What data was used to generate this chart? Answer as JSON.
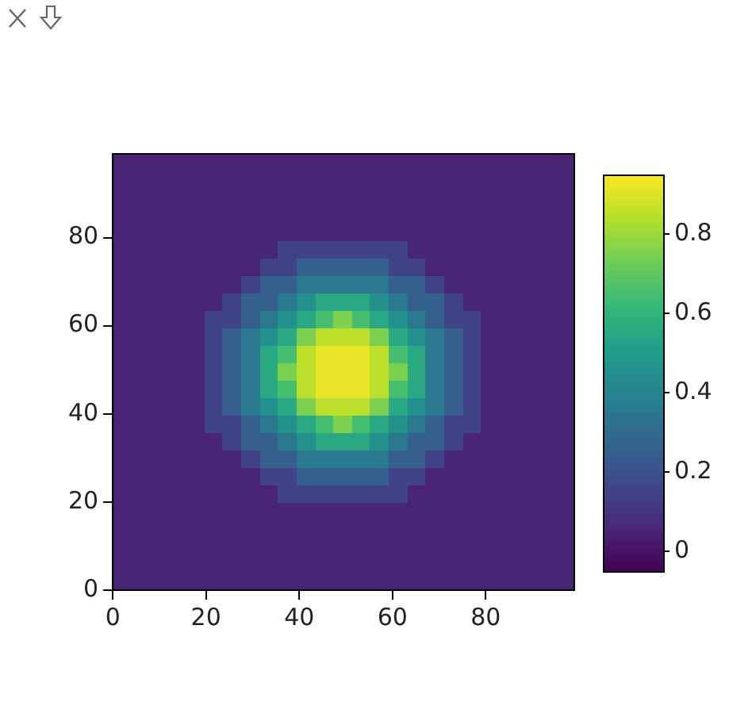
{
  "chart_data": {
    "type": "heatmap",
    "xlim": [
      0,
      99
    ],
    "ylim": [
      0,
      99
    ],
    "xticks": [
      0,
      20,
      40,
      60,
      80
    ],
    "yticks": [
      0,
      20,
      40,
      60,
      80
    ],
    "clim": [
      -0.05,
      0.95
    ],
    "cticks": [
      0,
      0.2,
      0.4,
      0.6,
      0.8
    ],
    "cells": [
      [
        0.05,
        0.05,
        0.05,
        0.05,
        0.05,
        0.05,
        0.05,
        0.05,
        0.05,
        0.05,
        0.05,
        0.05,
        0.05,
        0.05,
        0.05,
        0.05,
        0.05,
        0.05,
        0.05,
        0.05,
        0.05,
        0.05,
        0.05,
        0.05,
        0.05
      ],
      [
        0.05,
        0.05,
        0.05,
        0.05,
        0.05,
        0.05,
        0.05,
        0.05,
        0.05,
        0.05,
        0.05,
        0.05,
        0.05,
        0.05,
        0.05,
        0.05,
        0.05,
        0.05,
        0.05,
        0.05,
        0.05,
        0.05,
        0.05,
        0.05,
        0.05
      ],
      [
        0.05,
        0.05,
        0.05,
        0.05,
        0.05,
        0.05,
        0.05,
        0.05,
        0.05,
        0.05,
        0.05,
        0.05,
        0.05,
        0.05,
        0.05,
        0.05,
        0.05,
        0.05,
        0.05,
        0.05,
        0.05,
        0.05,
        0.05,
        0.05,
        0.05
      ],
      [
        0.05,
        0.05,
        0.05,
        0.05,
        0.05,
        0.05,
        0.05,
        0.05,
        0.05,
        0.05,
        0.05,
        0.05,
        0.05,
        0.05,
        0.05,
        0.05,
        0.05,
        0.05,
        0.05,
        0.05,
        0.05,
        0.05,
        0.05,
        0.05,
        0.05
      ],
      [
        0.05,
        0.05,
        0.05,
        0.05,
        0.05,
        0.05,
        0.05,
        0.05,
        0.05,
        0.05,
        0.05,
        0.05,
        0.05,
        0.05,
        0.05,
        0.05,
        0.05,
        0.05,
        0.05,
        0.05,
        0.05,
        0.05,
        0.05,
        0.05,
        0.05
      ],
      [
        0.05,
        0.05,
        0.05,
        0.05,
        0.05,
        0.05,
        0.05,
        0.05,
        0.05,
        0.15,
        0.15,
        0.15,
        0.15,
        0.15,
        0.15,
        0.15,
        0.05,
        0.05,
        0.05,
        0.05,
        0.05,
        0.05,
        0.05,
        0.05,
        0.05
      ],
      [
        0.05,
        0.05,
        0.05,
        0.05,
        0.05,
        0.05,
        0.05,
        0.05,
        0.15,
        0.15,
        0.25,
        0.25,
        0.25,
        0.25,
        0.25,
        0.15,
        0.15,
        0.05,
        0.05,
        0.05,
        0.05,
        0.05,
        0.05,
        0.05,
        0.05
      ],
      [
        0.05,
        0.05,
        0.05,
        0.05,
        0.05,
        0.05,
        0.05,
        0.15,
        0.25,
        0.25,
        0.35,
        0.35,
        0.35,
        0.35,
        0.35,
        0.25,
        0.25,
        0.15,
        0.05,
        0.05,
        0.05,
        0.05,
        0.05,
        0.05,
        0.05
      ],
      [
        0.05,
        0.05,
        0.05,
        0.05,
        0.05,
        0.05,
        0.15,
        0.25,
        0.25,
        0.35,
        0.45,
        0.55,
        0.55,
        0.55,
        0.45,
        0.35,
        0.25,
        0.25,
        0.15,
        0.05,
        0.05,
        0.05,
        0.05,
        0.05,
        0.05
      ],
      [
        0.05,
        0.05,
        0.05,
        0.05,
        0.05,
        0.15,
        0.15,
        0.25,
        0.35,
        0.45,
        0.55,
        0.65,
        0.75,
        0.65,
        0.55,
        0.45,
        0.35,
        0.25,
        0.15,
        0.15,
        0.05,
        0.05,
        0.05,
        0.05,
        0.05
      ],
      [
        0.05,
        0.05,
        0.05,
        0.05,
        0.05,
        0.15,
        0.25,
        0.35,
        0.45,
        0.55,
        0.75,
        0.85,
        0.85,
        0.85,
        0.75,
        0.55,
        0.45,
        0.35,
        0.25,
        0.15,
        0.05,
        0.05,
        0.05,
        0.05,
        0.05
      ],
      [
        0.05,
        0.05,
        0.05,
        0.05,
        0.05,
        0.15,
        0.25,
        0.35,
        0.55,
        0.65,
        0.85,
        0.92,
        0.92,
        0.92,
        0.85,
        0.65,
        0.55,
        0.35,
        0.25,
        0.15,
        0.05,
        0.05,
        0.05,
        0.05,
        0.05
      ],
      [
        0.05,
        0.05,
        0.05,
        0.05,
        0.05,
        0.15,
        0.25,
        0.35,
        0.55,
        0.75,
        0.85,
        0.92,
        0.92,
        0.92,
        0.85,
        0.75,
        0.55,
        0.35,
        0.25,
        0.15,
        0.05,
        0.05,
        0.05,
        0.05,
        0.05
      ],
      [
        0.05,
        0.05,
        0.05,
        0.05,
        0.05,
        0.15,
        0.25,
        0.35,
        0.55,
        0.65,
        0.85,
        0.92,
        0.92,
        0.92,
        0.85,
        0.65,
        0.55,
        0.35,
        0.25,
        0.15,
        0.05,
        0.05,
        0.05,
        0.05,
        0.05
      ],
      [
        0.05,
        0.05,
        0.05,
        0.05,
        0.05,
        0.15,
        0.25,
        0.35,
        0.45,
        0.55,
        0.75,
        0.85,
        0.85,
        0.85,
        0.75,
        0.55,
        0.45,
        0.35,
        0.25,
        0.15,
        0.05,
        0.05,
        0.05,
        0.05,
        0.05
      ],
      [
        0.05,
        0.05,
        0.05,
        0.05,
        0.05,
        0.15,
        0.15,
        0.25,
        0.35,
        0.45,
        0.55,
        0.65,
        0.75,
        0.65,
        0.55,
        0.45,
        0.35,
        0.25,
        0.15,
        0.15,
        0.05,
        0.05,
        0.05,
        0.05,
        0.05
      ],
      [
        0.05,
        0.05,
        0.05,
        0.05,
        0.05,
        0.05,
        0.15,
        0.25,
        0.25,
        0.35,
        0.45,
        0.55,
        0.55,
        0.55,
        0.45,
        0.35,
        0.25,
        0.25,
        0.15,
        0.05,
        0.05,
        0.05,
        0.05,
        0.05,
        0.05
      ],
      [
        0.05,
        0.05,
        0.05,
        0.05,
        0.05,
        0.05,
        0.05,
        0.15,
        0.25,
        0.25,
        0.35,
        0.35,
        0.35,
        0.35,
        0.35,
        0.25,
        0.25,
        0.15,
        0.05,
        0.05,
        0.05,
        0.05,
        0.05,
        0.05,
        0.05
      ],
      [
        0.05,
        0.05,
        0.05,
        0.05,
        0.05,
        0.05,
        0.05,
        0.05,
        0.15,
        0.15,
        0.25,
        0.25,
        0.25,
        0.25,
        0.25,
        0.15,
        0.15,
        0.05,
        0.05,
        0.05,
        0.05,
        0.05,
        0.05,
        0.05,
        0.05
      ],
      [
        0.05,
        0.05,
        0.05,
        0.05,
        0.05,
        0.05,
        0.05,
        0.05,
        0.05,
        0.15,
        0.15,
        0.15,
        0.15,
        0.15,
        0.15,
        0.15,
        0.05,
        0.05,
        0.05,
        0.05,
        0.05,
        0.05,
        0.05,
        0.05,
        0.05
      ],
      [
        0.05,
        0.05,
        0.05,
        0.05,
        0.05,
        0.05,
        0.05,
        0.05,
        0.05,
        0.05,
        0.05,
        0.05,
        0.05,
        0.05,
        0.05,
        0.05,
        0.05,
        0.05,
        0.05,
        0.05,
        0.05,
        0.05,
        0.05,
        0.05,
        0.05
      ],
      [
        0.05,
        0.05,
        0.05,
        0.05,
        0.05,
        0.05,
        0.05,
        0.05,
        0.05,
        0.05,
        0.05,
        0.05,
        0.05,
        0.05,
        0.05,
        0.05,
        0.05,
        0.05,
        0.05,
        0.05,
        0.05,
        0.05,
        0.05,
        0.05,
        0.05
      ],
      [
        0.05,
        0.05,
        0.05,
        0.05,
        0.05,
        0.05,
        0.05,
        0.05,
        0.05,
        0.05,
        0.05,
        0.05,
        0.05,
        0.05,
        0.05,
        0.05,
        0.05,
        0.05,
        0.05,
        0.05,
        0.05,
        0.05,
        0.05,
        0.05,
        0.05
      ],
      [
        0.05,
        0.05,
        0.05,
        0.05,
        0.05,
        0.05,
        0.05,
        0.05,
        0.05,
        0.05,
        0.05,
        0.05,
        0.05,
        0.05,
        0.05,
        0.05,
        0.05,
        0.05,
        0.05,
        0.05,
        0.05,
        0.05,
        0.05,
        0.05,
        0.05
      ],
      [
        0.05,
        0.05,
        0.05,
        0.05,
        0.05,
        0.05,
        0.05,
        0.05,
        0.05,
        0.05,
        0.05,
        0.05,
        0.05,
        0.05,
        0.05,
        0.05,
        0.05,
        0.05,
        0.05,
        0.05,
        0.05,
        0.05,
        0.05,
        0.05,
        0.05
      ]
    ]
  }
}
